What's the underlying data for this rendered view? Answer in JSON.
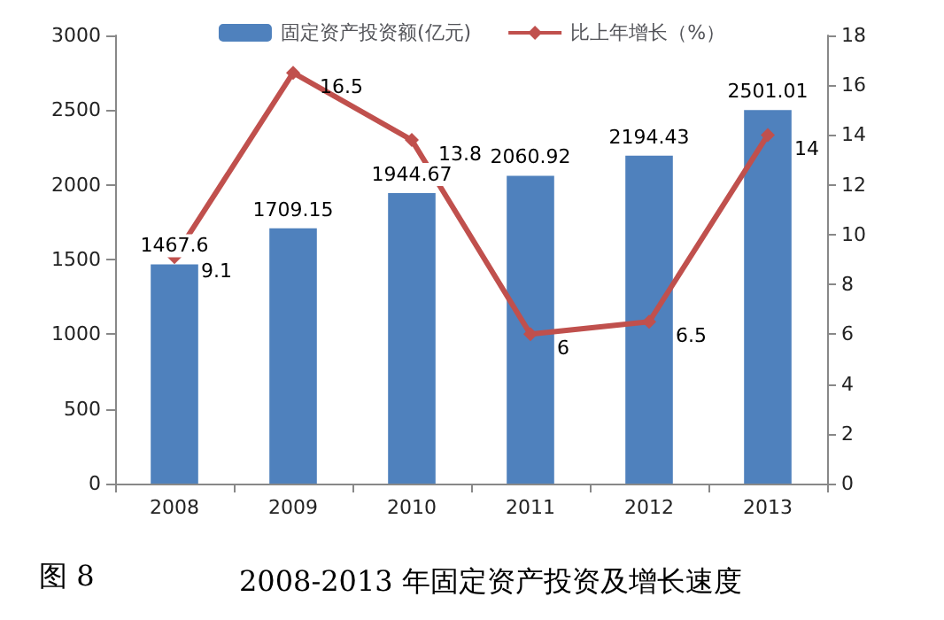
{
  "chart_data": {
    "type": "bar",
    "title": "2008-2013 年固定资产投资及增长速度",
    "annotations": [
      "图 8"
    ],
    "categories": [
      "2008",
      "2009",
      "2010",
      "2011",
      "2012",
      "2013"
    ],
    "series": [
      {
        "name": "固定资产投资额(亿元)",
        "color": "#4f81bd",
        "values": [
          1467.6,
          1709.15,
          1944.67,
          2060.92,
          2194.43,
          2501.01
        ]
      },
      {
        "name": "比上年增长（%）",
        "type": "line",
        "axis": "y2",
        "color": "#c0504d",
        "marker": "diamond",
        "values": [
          9.1,
          16.5,
          13.8,
          6,
          6.5,
          14
        ]
      }
    ],
    "ylim": [
      0,
      3000
    ],
    "yticks": [
      0,
      500,
      1000,
      1500,
      2000,
      2500,
      3000
    ],
    "y2lim": [
      0,
      18
    ],
    "y2ticks": [
      0,
      2,
      4,
      6,
      8,
      10,
      12,
      14,
      16,
      18
    ],
    "data_labels": true,
    "grid": false,
    "legend": "top"
  }
}
